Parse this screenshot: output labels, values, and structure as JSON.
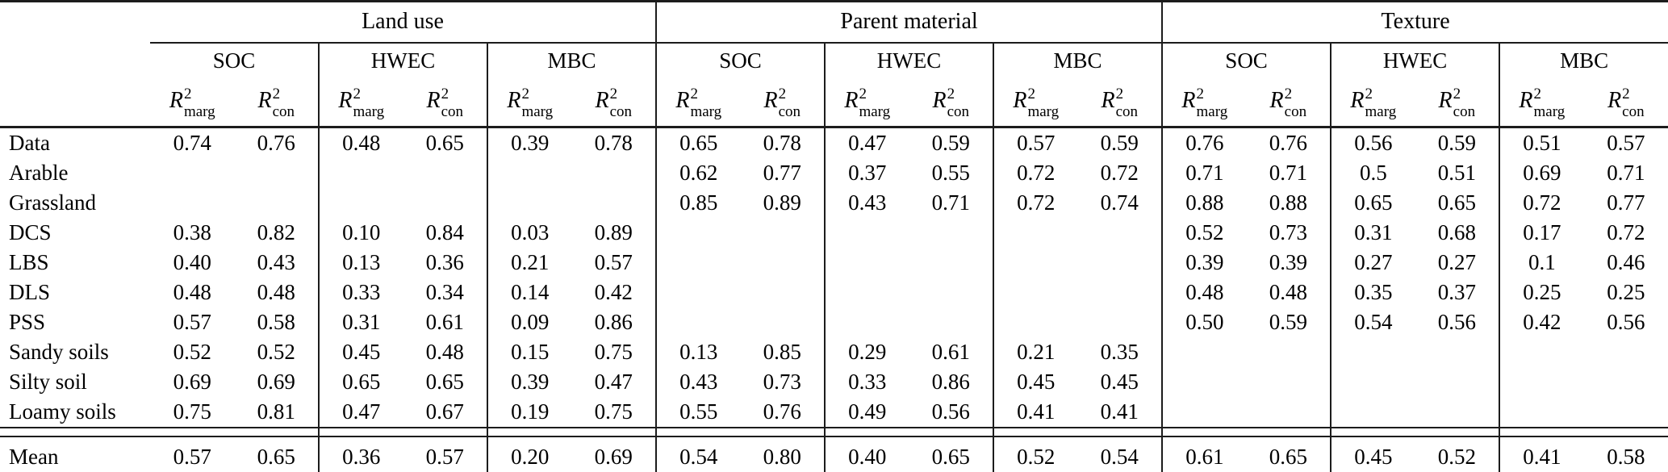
{
  "chart_data": {
    "type": "table",
    "col_groups": [
      "Land use",
      "Parent material",
      "Texture"
    ],
    "sub_groups": [
      "SOC",
      "HWEC",
      "MBC"
    ],
    "metric_header": {
      "base": "R",
      "sup": "2",
      "marg": "marg",
      "con": "con"
    },
    "rows": [
      {
        "label": "Data",
        "values": [
          "0.74",
          "0.76",
          "0.48",
          "0.65",
          "0.39",
          "0.78",
          "0.65",
          "0.78",
          "0.47",
          "0.59",
          "0.57",
          "0.59",
          "0.76",
          "0.76",
          "0.56",
          "0.59",
          "0.51",
          "0.57"
        ]
      },
      {
        "label": "Arable",
        "values": [
          "",
          "",
          "",
          "",
          "",
          "",
          "0.62",
          "0.77",
          "0.37",
          "0.55",
          "0.72",
          "0.72",
          "0.71",
          "0.71",
          "0.5",
          "0.51",
          "0.69",
          "0.71"
        ]
      },
      {
        "label": "Grassland",
        "values": [
          "",
          "",
          "",
          "",
          "",
          "",
          "0.85",
          "0.89",
          "0.43",
          "0.71",
          "0.72",
          "0.74",
          "0.88",
          "0.88",
          "0.65",
          "0.65",
          "0.72",
          "0.77"
        ]
      },
      {
        "label": "DCS",
        "values": [
          "0.38",
          "0.82",
          "0.10",
          "0.84",
          "0.03",
          "0.89",
          "",
          "",
          "",
          "",
          "",
          "",
          "0.52",
          "0.73",
          "0.31",
          "0.68",
          "0.17",
          "0.72"
        ]
      },
      {
        "label": "LBS",
        "values": [
          "0.40",
          "0.43",
          "0.13",
          "0.36",
          "0.21",
          "0.57",
          "",
          "",
          "",
          "",
          "",
          "",
          "0.39",
          "0.39",
          "0.27",
          "0.27",
          "0.1",
          "0.46"
        ]
      },
      {
        "label": "DLS",
        "values": [
          "0.48",
          "0.48",
          "0.33",
          "0.34",
          "0.14",
          "0.42",
          "",
          "",
          "",
          "",
          "",
          "",
          "0.48",
          "0.48",
          "0.35",
          "0.37",
          "0.25",
          "0.25"
        ]
      },
      {
        "label": "PSS",
        "values": [
          "0.57",
          "0.58",
          "0.31",
          "0.61",
          "0.09",
          "0.86",
          "",
          "",
          "",
          "",
          "",
          "",
          "0.50",
          "0.59",
          "0.54",
          "0.56",
          "0.42",
          "0.56"
        ]
      },
      {
        "label": "Sandy soils",
        "values": [
          "0.52",
          "0.52",
          "0.45",
          "0.48",
          "0.15",
          "0.75",
          "0.13",
          "0.85",
          "0.29",
          "0.61",
          "0.21",
          "0.35",
          "",
          "",
          "",
          "",
          "",
          ""
        ]
      },
      {
        "label": "Silty soil",
        "values": [
          "0.69",
          "0.69",
          "0.65",
          "0.65",
          "0.39",
          "0.47",
          "0.43",
          "0.73",
          "0.33",
          "0.86",
          "0.45",
          "0.45",
          "",
          "",
          "",
          "",
          "",
          ""
        ]
      },
      {
        "label": "Loamy soils",
        "values": [
          "0.75",
          "0.81",
          "0.47",
          "0.67",
          "0.19",
          "0.75",
          "0.55",
          "0.76",
          "0.49",
          "0.56",
          "0.41",
          "0.41",
          "",
          "",
          "",
          "",
          "",
          ""
        ]
      }
    ],
    "mean": {
      "label": "Mean",
      "values": [
        "0.57",
        "0.65",
        "0.36",
        "0.57",
        "0.20",
        "0.69",
        "0.54",
        "0.80",
        "0.40",
        "0.65",
        "0.52",
        "0.54",
        "0.61",
        "0.65",
        "0.45",
        "0.52",
        "0.41",
        "0.58"
      ]
    }
  }
}
